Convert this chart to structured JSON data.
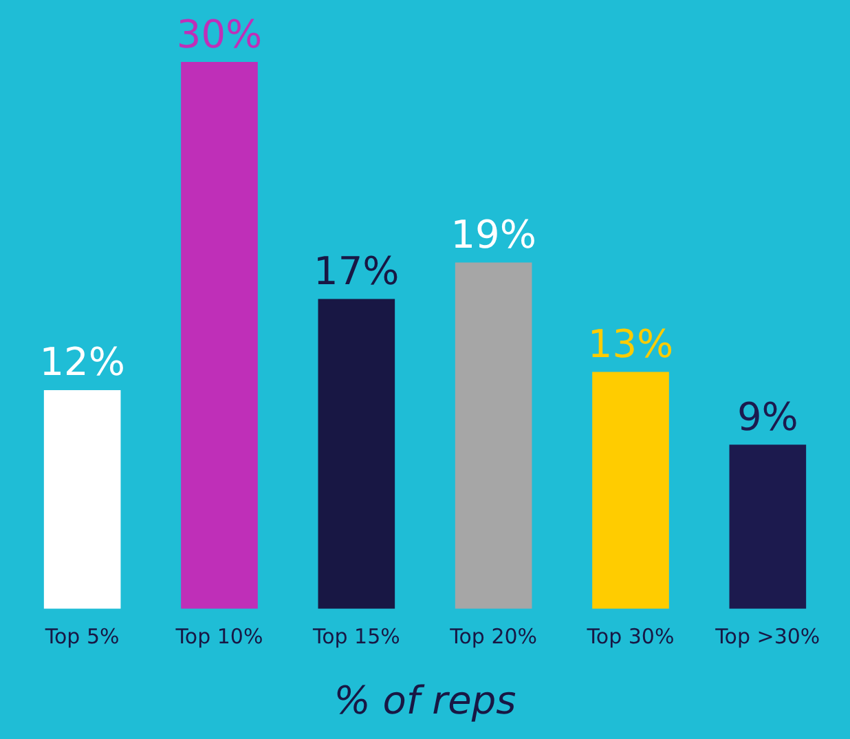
{
  "chart_data": {
    "type": "bar",
    "xlabel": "% of reps",
    "categories": [
      "Top 5%",
      "Top 10%",
      "Top 15%",
      "Top 20%",
      "Top 30%",
      "Top >30%"
    ],
    "values": [
      12,
      30,
      17,
      19,
      13,
      9
    ],
    "colors": [
      "#ffffff",
      "#bf2fb8",
      "#181744",
      "#a6a6a6",
      "#ffcc00",
      "#1c1a4e"
    ],
    "value_labels": [
      "12%",
      "30%",
      "17%",
      "19%",
      "13%",
      "9%"
    ],
    "tick_labels": "x",
    "grid": false,
    "legend": false
  }
}
